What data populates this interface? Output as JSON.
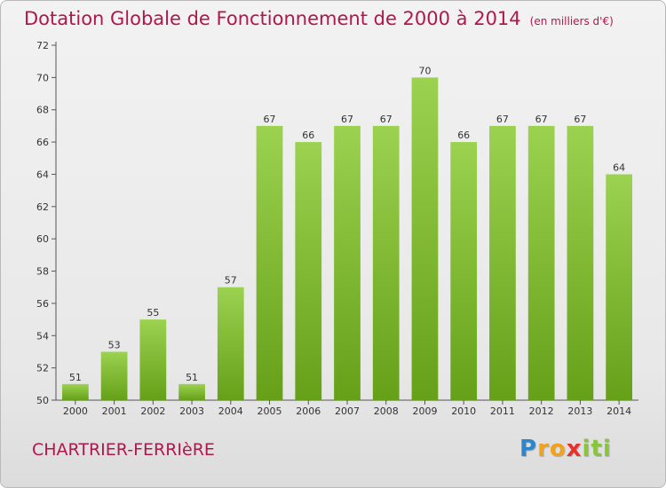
{
  "chart_title": "Dotation Globale de Fonctionnement de 2000 à 2014",
  "chart_unit": "(en milliers d'€)",
  "location_name": "CHARTRIER-FERRIèRE",
  "logo": {
    "text": "Proxiti",
    "letters": [
      {
        "char": "P",
        "color": "#2e86c8"
      },
      {
        "char": "r",
        "color": "#f0a21a"
      },
      {
        "char": "o",
        "color": "#f0a21a"
      },
      {
        "char": "x",
        "color": "#e8302c"
      },
      {
        "char": "i",
        "color": "#8ac43f"
      },
      {
        "char": "t",
        "color": "#8ac43f"
      },
      {
        "char": "i",
        "color": "#8ac43f"
      }
    ]
  },
  "colors": {
    "title": "#b0184a",
    "bar_light": "#9bd250",
    "bar_dark": "#66a019",
    "axis": "#555555",
    "grid": "#cfcfcf"
  },
  "chart_data": {
    "type": "bar",
    "title": "Dotation Globale de Fonctionnement de 2000 à 2014",
    "unit": "(en milliers d'€)",
    "xlabel": "",
    "ylabel": "",
    "categories": [
      "2000",
      "2001",
      "2002",
      "2003",
      "2004",
      "2005",
      "2006",
      "2007",
      "2008",
      "2009",
      "2010",
      "2011",
      "2012",
      "2013",
      "2014"
    ],
    "values": [
      51,
      53,
      55,
      51,
      57,
      67,
      66,
      67,
      67,
      70,
      66,
      67,
      67,
      67,
      64
    ],
    "ylim": [
      50,
      72
    ],
    "yticks": [
      50,
      52,
      54,
      56,
      58,
      60,
      62,
      64,
      66,
      68,
      70,
      72
    ],
    "grid": false,
    "legend": "none",
    "data_labels": true
  }
}
